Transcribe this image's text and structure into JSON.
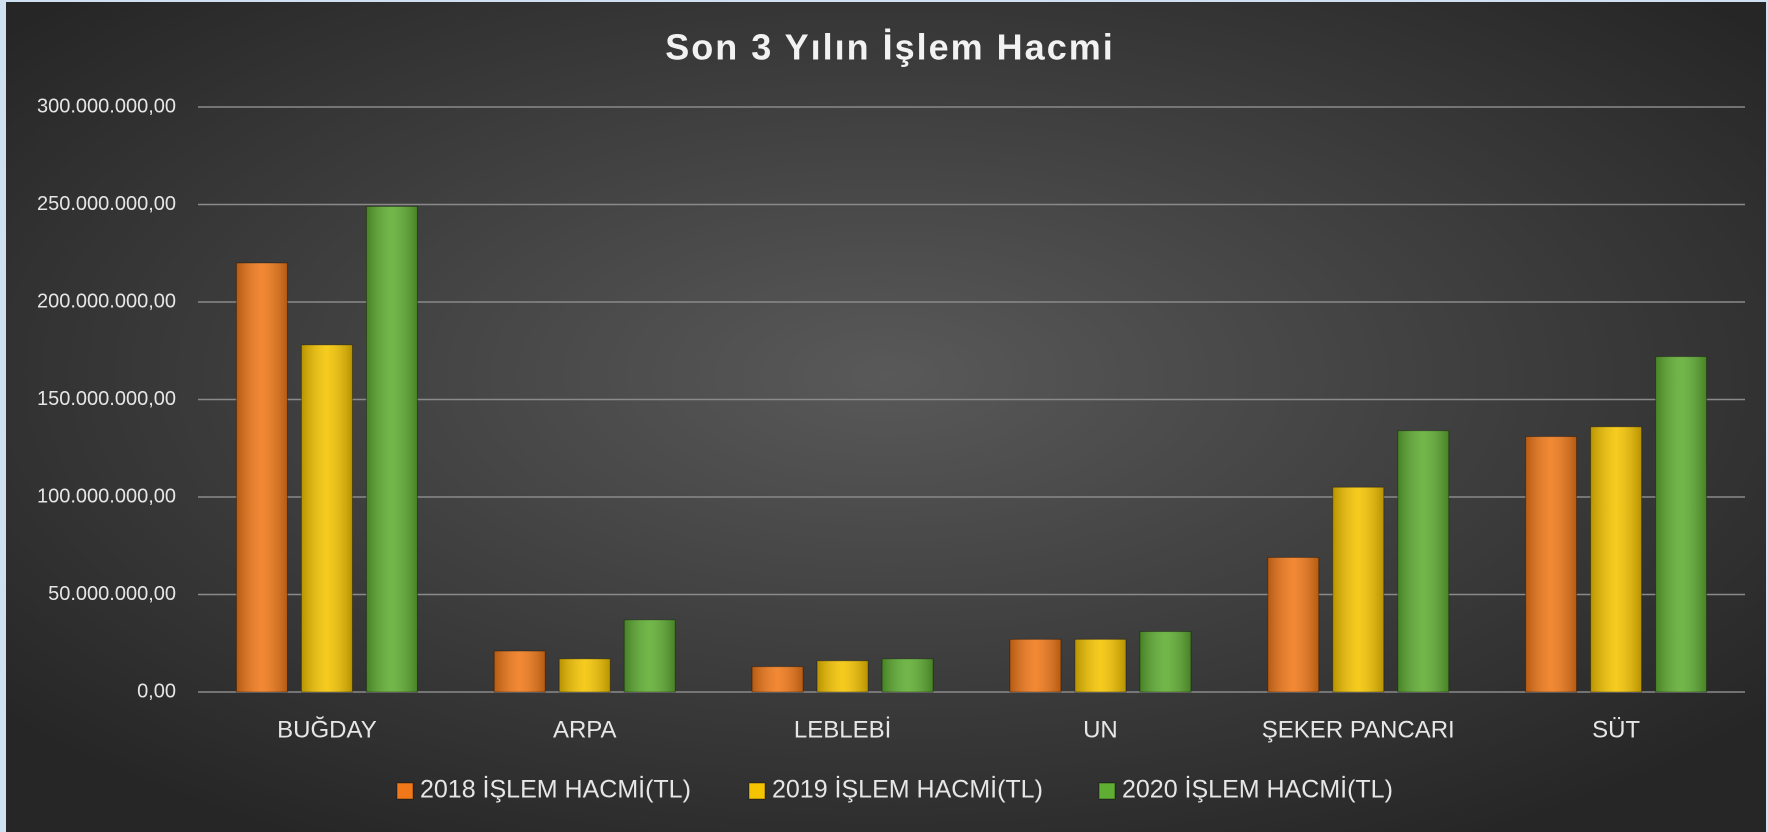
{
  "chart_data": {
    "type": "bar",
    "title": "Son 3 Yılın İşlem Hacmi",
    "categories": [
      "BUĞDAY",
      "ARPA",
      "LEBLEBİ",
      "UN",
      "ŞEKER PANCARI",
      "SÜT"
    ],
    "series": [
      {
        "name": "2018 İŞLEM HACMİ(TL)",
        "color": "#f07818",
        "values": [
          220000000,
          21000000,
          13000000,
          27000000,
          69000000,
          131000000
        ]
      },
      {
        "name": "2019 İŞLEM HACMİ(TL)",
        "color": "#f5c400",
        "values": [
          178000000,
          17000000,
          16000000,
          27000000,
          105000000,
          136000000
        ]
      },
      {
        "name": "2020 İŞLEM HACMİ(TL)",
        "color": "#5fad32",
        "values": [
          249000000,
          37000000,
          17000000,
          31000000,
          134000000,
          172000000
        ]
      }
    ],
    "ylim": [
      0,
      300000000
    ],
    "yticks": [
      {
        "value": 0,
        "label": "0,00"
      },
      {
        "value": 50000000,
        "label": "50.000.000,00"
      },
      {
        "value": 100000000,
        "label": "100.000.000,00"
      },
      {
        "value": 150000000,
        "label": "150.000.000,00"
      },
      {
        "value": 200000000,
        "label": "200.000.000,00"
      },
      {
        "value": 250000000,
        "label": "250.000.000,00"
      },
      {
        "value": 300000000,
        "label": "300.000.000,00"
      }
    ],
    "grid": true,
    "legend": "bottom"
  }
}
